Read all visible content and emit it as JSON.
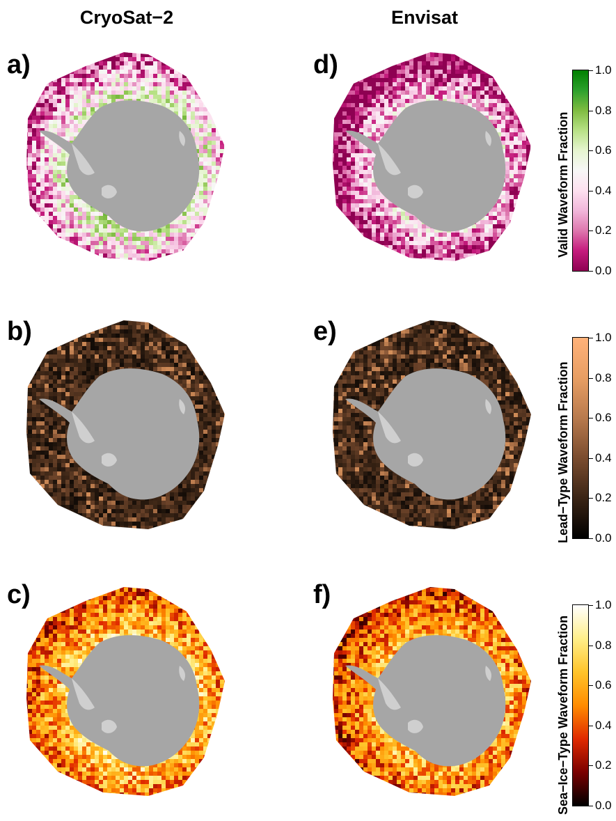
{
  "columns": {
    "left": "CryoSat−2",
    "right": "Envisat"
  },
  "panels": [
    {
      "label": "a)",
      "sensor": "CryoSat-2",
      "variable": "valid",
      "palette": "PiYG",
      "seed": 11,
      "bias": 0.62
    },
    {
      "label": "b)",
      "sensor": "CryoSat-2",
      "variable": "lead",
      "palette": "copper",
      "seed": 23,
      "bias": 0.38
    },
    {
      "label": "c)",
      "sensor": "CryoSat-2",
      "variable": "seaice",
      "palette": "afmhot",
      "seed": 37,
      "bias": 0.72
    },
    {
      "label": "d)",
      "sensor": "Envisat",
      "variable": "valid",
      "palette": "PiYG",
      "seed": 51,
      "bias": 0.42
    },
    {
      "label": "e)",
      "sensor": "Envisat",
      "variable": "lead",
      "palette": "copper",
      "seed": 67,
      "bias": 0.4
    },
    {
      "label": "f)",
      "sensor": "Envisat",
      "variable": "seaice",
      "palette": "afmhot",
      "seed": 79,
      "bias": 0.66
    }
  ],
  "colorbars": [
    {
      "title": "Valid Waveform Fraction",
      "palette": "PiYG",
      "colors": [
        "#8e0152",
        "#c51b7d",
        "#de77ae",
        "#f1b6da",
        "#fde0ef",
        "#f7f7f7",
        "#e6f5d0",
        "#b8e186",
        "#7fbc41",
        "#2ca02c",
        "#008000"
      ],
      "ticks": [
        "0.0",
        "0.2",
        "0.4",
        "0.6",
        "0.8",
        "1.0"
      ]
    },
    {
      "title": "Lead−Type Waveform Fraction",
      "palette": "copper",
      "colors": [
        "#000000",
        "#3a2415",
        "#7a4c2f",
        "#b87a4d",
        "#e89e63",
        "#ffb27a"
      ],
      "ticks": [
        "0.0",
        "0.2",
        "0.4",
        "0.6",
        "0.8",
        "1.0"
      ]
    },
    {
      "title": "Sea−Ice−Type Waveform Fraction",
      "palette": "afmhot",
      "colors": [
        "#000000",
        "#7a0000",
        "#e02a00",
        "#ff8c00",
        "#ffc42a",
        "#ffef8a",
        "#ffffff"
      ],
      "ticks": [
        "0.0",
        "0.2",
        "0.4",
        "0.6",
        "0.8",
        "1.0"
      ]
    }
  ],
  "land_colors": {
    "continent": "#a6a6a6",
    "ice_shelf": "#cfcfcf"
  }
}
